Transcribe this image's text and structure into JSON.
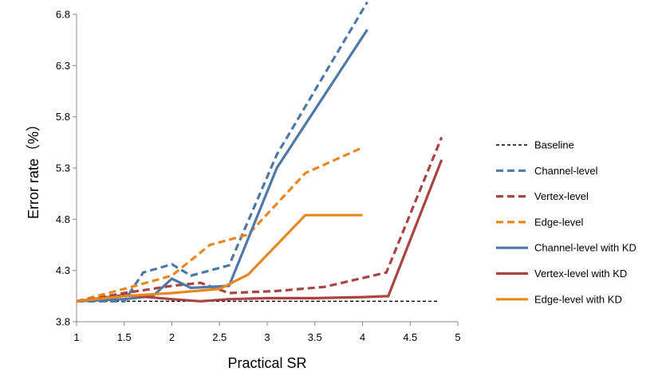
{
  "chart_data": {
    "type": "line",
    "title": "",
    "xlabel": "Practical SR",
    "ylabel": "Error rate（%）",
    "xlim": [
      1,
      5
    ],
    "ylim": [
      3.8,
      6.8
    ],
    "xticks": [
      "1",
      "1.5",
      "2",
      "2.5",
      "3",
      "3.5",
      "4",
      "4.5",
      "5"
    ],
    "yticks": [
      "3.8",
      "4.3",
      "4.8",
      "5.3",
      "5.8",
      "6.3",
      "6.8"
    ],
    "grid": false,
    "legend_position": "right",
    "series": [
      {
        "name": "Baseline",
        "color": "#000000",
        "style": "dotted",
        "x": [
          1,
          4.8
        ],
        "y": [
          4.0,
          4.0
        ]
      },
      {
        "name": "Channel-level",
        "color": "#4e79a7",
        "style": "dashed",
        "x": [
          1,
          1.5,
          1.7,
          2.0,
          2.2,
          2.6,
          3.1,
          4.05
        ],
        "y": [
          4.0,
          4.0,
          4.28,
          4.36,
          4.25,
          4.35,
          5.43,
          6.92
        ]
      },
      {
        "name": "Vertex-level",
        "color": "#a94442",
        "style": "dashed",
        "x": [
          1,
          1.5,
          2.0,
          2.3,
          2.6,
          3.1,
          3.6,
          4.25,
          4.83
        ],
        "y": [
          4.0,
          4.08,
          4.15,
          4.18,
          4.08,
          4.1,
          4.14,
          4.28,
          5.6
        ]
      },
      {
        "name": "Edge-level",
        "color": "#e8871e",
        "style": "dashed",
        "x": [
          1,
          1.5,
          2.0,
          2.4,
          2.8,
          3.4,
          4.0
        ],
        "y": [
          4.0,
          4.12,
          4.25,
          4.55,
          4.65,
          5.25,
          5.5
        ]
      },
      {
        "name": "Channel-level with KD",
        "color": "#4e79a7",
        "style": "solid",
        "x": [
          1,
          1.5,
          1.8,
          2.0,
          2.2,
          2.6,
          3.1,
          4.05
        ],
        "y": [
          4.0,
          4.02,
          4.05,
          4.22,
          4.13,
          4.15,
          5.3,
          6.65
        ]
      },
      {
        "name": "Vertex-level with KD",
        "color": "#a94442",
        "style": "solid",
        "x": [
          1,
          1.5,
          2.0,
          2.3,
          2.6,
          3.0,
          3.5,
          4.0,
          4.27,
          4.83
        ],
        "y": [
          4.0,
          4.06,
          4.02,
          4.0,
          4.02,
          4.03,
          4.03,
          4.04,
          4.05,
          5.38
        ]
      },
      {
        "name": "Edge-level with KD",
        "color": "#e8871e",
        "style": "solid",
        "x": [
          1,
          1.5,
          2.0,
          2.5,
          2.8,
          3.4,
          4.0
        ],
        "y": [
          4.0,
          4.05,
          4.08,
          4.12,
          4.26,
          4.84,
          4.84
        ]
      }
    ]
  }
}
